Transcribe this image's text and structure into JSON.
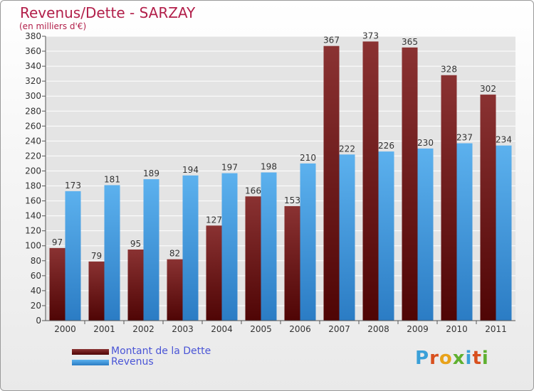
{
  "chart_data": {
    "type": "bar",
    "title": "Revenus/Dette - SARZAY",
    "subtitle": "(en milliers d'€)",
    "categories": [
      "2000",
      "2001",
      "2002",
      "2003",
      "2004",
      "2005",
      "2006",
      "2007",
      "2008",
      "2009",
      "2010",
      "2011"
    ],
    "series": [
      {
        "name": "Montant de la Dette",
        "values": [
          97,
          79,
          95,
          82,
          127,
          166,
          153,
          367,
          373,
          365,
          328,
          302
        ],
        "color": "#7a1a1a"
      },
      {
        "name": "Revenus",
        "values": [
          173,
          181,
          189,
          194,
          197,
          198,
          210,
          222,
          226,
          230,
          237,
          234
        ],
        "color": "#3a9ee0"
      }
    ],
    "ylim": [
      0,
      380
    ],
    "yticks": [
      0,
      20,
      40,
      60,
      80,
      100,
      120,
      140,
      160,
      180,
      200,
      220,
      240,
      260,
      280,
      300,
      320,
      340,
      360,
      380
    ],
    "grid": true,
    "legend_position": "bottom-left"
  },
  "logo_text": "Proxiti"
}
